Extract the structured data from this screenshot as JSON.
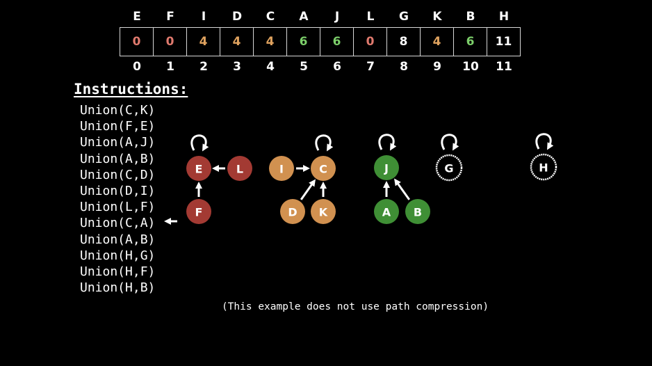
{
  "array": {
    "headers": [
      "E",
      "F",
      "I",
      "D",
      "C",
      "A",
      "J",
      "L",
      "G",
      "K",
      "B",
      "H"
    ],
    "values": [
      "0",
      "0",
      "4",
      "4",
      "4",
      "6",
      "6",
      "0",
      "8",
      "4",
      "6",
      "11"
    ],
    "indices": [
      "0",
      "1",
      "2",
      "3",
      "4",
      "5",
      "6",
      "7",
      "8",
      "9",
      "10",
      "11"
    ],
    "value_colors": [
      "#e07a6e",
      "#e07a6e",
      "#e0a35f",
      "#e0a35f",
      "#e0a35f",
      "#7ccf6a",
      "#7ccf6a",
      "#e07a6e",
      "#ffffff",
      "#e0a35f",
      "#7ccf6a",
      "#ffffff"
    ]
  },
  "instructions": {
    "title": "Instructions:",
    "items": [
      "Union(C,K)",
      "Union(F,E)",
      "Union(A,J)",
      "Union(A,B)",
      "Union(C,D)",
      "Union(D,I)",
      "Union(L,F)",
      "Union(C,A)",
      "Union(A,B)",
      "Union(H,G)",
      "Union(H,F)",
      "Union(H,B)"
    ],
    "current_index": 7
  },
  "graph": {
    "nodes": [
      {
        "id": "E",
        "color": "#a33a33",
        "self_loop": true
      },
      {
        "id": "L",
        "color": "#a33a33"
      },
      {
        "id": "F",
        "color": "#a33a33"
      },
      {
        "id": "I",
        "color": "#d19150"
      },
      {
        "id": "C",
        "color": "#d19150",
        "self_loop": true
      },
      {
        "id": "D",
        "color": "#d19150"
      },
      {
        "id": "K",
        "color": "#d19150"
      },
      {
        "id": "J",
        "color": "#3f8f35",
        "self_loop": true
      },
      {
        "id": "A",
        "color": "#3f8f35"
      },
      {
        "id": "B",
        "color": "#3f8f35"
      },
      {
        "id": "G",
        "color": "#000000",
        "outline": true,
        "self_loop": true
      },
      {
        "id": "H",
        "color": "#000000",
        "outline": true,
        "self_loop": true
      }
    ],
    "edges": [
      {
        "from": "L",
        "to": "E"
      },
      {
        "from": "F",
        "to": "E"
      },
      {
        "from": "I",
        "to": "C"
      },
      {
        "from": "D",
        "to": "C"
      },
      {
        "from": "K",
        "to": "C"
      },
      {
        "from": "A",
        "to": "J"
      },
      {
        "from": "B",
        "to": "J"
      }
    ]
  },
  "note": "(This example does not use path compression)"
}
